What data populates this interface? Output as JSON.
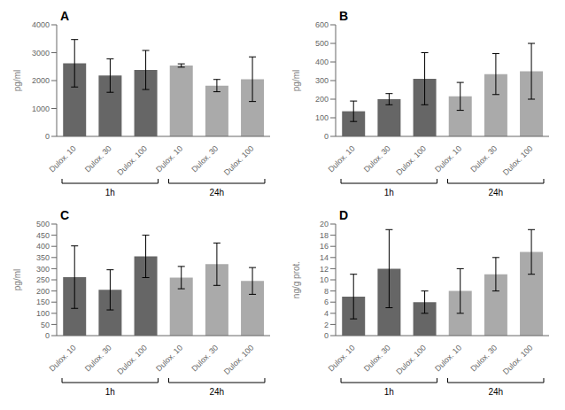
{
  "chart_data": [
    {
      "type": "bar",
      "title": "A",
      "ylabel": "pg/ml",
      "categories": [
        "Dulox. 10",
        "Dulox. 30",
        "Dulox. 100",
        "Dulox. 10",
        "Dulox. 30",
        "Dulox. 100"
      ],
      "series": [
        {
          "name": "1h",
          "color": "#666666",
          "values": [
            2620,
            2180,
            2380,
            null,
            null,
            null
          ],
          "errors": [
            850,
            600,
            700,
            null,
            null,
            null
          ]
        },
        {
          "name": "24h",
          "color": "#aaaaaa",
          "values": [
            null,
            null,
            null,
            2540,
            1820,
            2050
          ],
          "errors": [
            null,
            null,
            null,
            60,
            220,
            800
          ]
        }
      ],
      "ylim": [
        0,
        4000
      ],
      "yticks": [
        0,
        1000,
        2000,
        3000,
        4000
      ],
      "grid": false
    },
    {
      "type": "bar",
      "title": "B",
      "ylabel": "pg/ml",
      "categories": [
        "Dulox. 10",
        "Dulox. 30",
        "Dulox. 100",
        "Dulox. 10",
        "Dulox. 30",
        "Dulox. 100"
      ],
      "series": [
        {
          "name": "1h",
          "color": "#666666",
          "values": [
            135,
            200,
            310,
            null,
            null,
            null
          ],
          "errors": [
            55,
            30,
            140,
            null,
            null,
            null
          ]
        },
        {
          "name": "24h",
          "color": "#aaaaaa",
          "values": [
            null,
            null,
            null,
            215,
            335,
            350
          ],
          "errors": [
            null,
            null,
            null,
            75,
            110,
            150
          ]
        }
      ],
      "ylim": [
        0,
        600
      ],
      "yticks": [
        0,
        100,
        200,
        300,
        400,
        500,
        600
      ],
      "grid": false
    },
    {
      "type": "bar",
      "title": "C",
      "ylabel": "pg/ml",
      "categories": [
        "Dulox. 10",
        "Dulox. 30",
        "Dulox. 100",
        "Dulox. 10",
        "Dulox. 30",
        "Dulox. 100"
      ],
      "series": [
        {
          "name": "1h",
          "color": "#666666",
          "values": [
            262,
            205,
            355,
            null,
            null,
            null
          ],
          "errors": [
            140,
            90,
            95,
            null,
            null,
            null
          ]
        },
        {
          "name": "24h",
          "color": "#aaaaaa",
          "values": [
            null,
            null,
            null,
            260,
            320,
            245
          ],
          "errors": [
            null,
            null,
            null,
            50,
            95,
            60
          ]
        }
      ],
      "ylim": [
        0,
        500
      ],
      "yticks": [
        0,
        50,
        100,
        150,
        200,
        250,
        300,
        350,
        400,
        450,
        500
      ],
      "grid": false
    },
    {
      "type": "bar",
      "title": "D",
      "ylabel": "ng/g prot.",
      "categories": [
        "Dulox. 10",
        "Dulox. 30",
        "Dulox. 100",
        "Dulox. 10",
        "Dulox. 30",
        "Dulox. 100"
      ],
      "series": [
        {
          "name": "1h",
          "color": "#666666",
          "values": [
            7,
            12,
            6,
            null,
            null,
            null
          ],
          "errors": [
            4,
            7,
            2,
            null,
            null,
            null
          ]
        },
        {
          "name": "24h",
          "color": "#aaaaaa",
          "values": [
            null,
            null,
            null,
            8,
            11,
            15
          ],
          "errors": [
            null,
            null,
            null,
            4,
            3,
            4
          ]
        }
      ],
      "ylim": [
        0,
        20
      ],
      "yticks": [
        0,
        2,
        4,
        6,
        8,
        10,
        12,
        14,
        16,
        18,
        20
      ],
      "grid": false
    }
  ]
}
